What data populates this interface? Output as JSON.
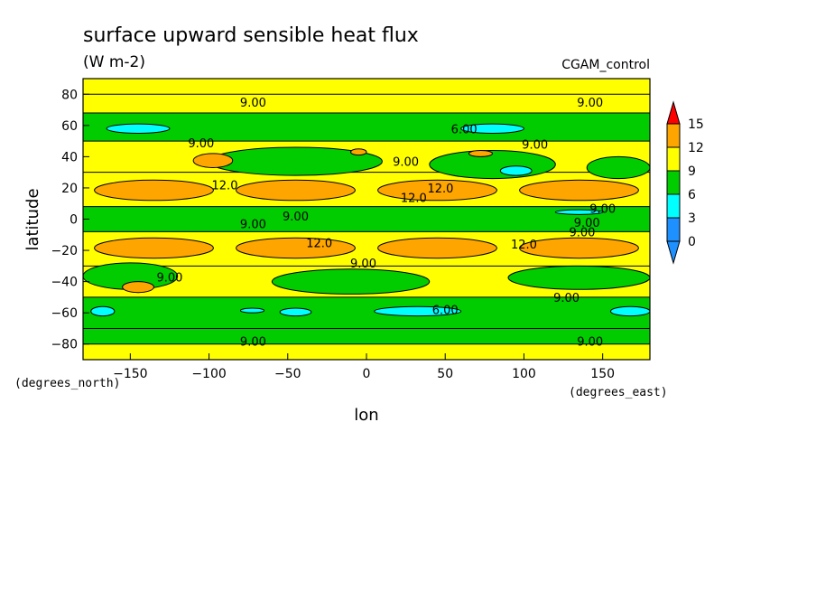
{
  "chart_data": {
    "type": "heatmap",
    "title": "surface upward sensible heat flux",
    "subtitle": "(W m-2)",
    "run_label": "CGAM_control",
    "xlabel": "lon",
    "ylabel": "latitude",
    "x_units": "(degrees_east)",
    "y_units": "(degrees_north)",
    "xlim": [
      -180,
      180
    ],
    "ylim": [
      -90,
      90
    ],
    "x_ticks": [
      -150,
      -100,
      -50,
      0,
      50,
      100,
      150
    ],
    "y_ticks": [
      -80,
      -60,
      -40,
      -20,
      0,
      20,
      40,
      60,
      80
    ],
    "colorbar": {
      "levels": [
        0,
        3,
        6,
        9,
        12,
        15
      ],
      "colors": [
        "#1e90ff",
        "#00ffff",
        "#00cc00",
        "#ffff00",
        "#ffa500"
      ],
      "under_color": "#1e90ff",
      "over_color": "#ff0000"
    },
    "bands": [
      {
        "lat": [
          80,
          90
        ],
        "level": 9
      },
      {
        "lat": [
          68,
          80
        ],
        "level": 9
      },
      {
        "lat": [
          50,
          68
        ],
        "level": 6
      },
      {
        "lat": [
          30,
          50
        ],
        "level": 9
      },
      {
        "lat": [
          8,
          30
        ],
        "level": 9
      },
      {
        "lat": [
          -8,
          8
        ],
        "level": 6
      },
      {
        "lat": [
          -30,
          -8
        ],
        "level": 9
      },
      {
        "lat": [
          -50,
          -30
        ],
        "level": 9
      },
      {
        "lat": [
          -70,
          -50
        ],
        "level": 6
      },
      {
        "lat": [
          -80,
          -70
        ],
        "level": 6
      },
      {
        "lat": [
          -90,
          -80
        ],
        "level": 9
      }
    ],
    "patches": [
      {
        "lon": [
          -180,
          180
        ],
        "lat": [
          12,
          25
        ],
        "level": 12,
        "shape": "wave"
      },
      {
        "lon": [
          -180,
          180
        ],
        "lat": [
          -25,
          -12
        ],
        "level": 12,
        "shape": "wave"
      },
      {
        "lon": [
          -100,
          10
        ],
        "lat": [
          28,
          46
        ],
        "level": 6
      },
      {
        "lon": [
          40,
          120
        ],
        "lat": [
          26,
          44
        ],
        "level": 6
      },
      {
        "lon": [
          140,
          180
        ],
        "lat": [
          26,
          40
        ],
        "level": 6
      },
      {
        "lon": [
          -180,
          -120
        ],
        "lat": [
          -45,
          -28
        ],
        "level": 6
      },
      {
        "lon": [
          -60,
          40
        ],
        "lat": [
          -48,
          -32
        ],
        "level": 6
      },
      {
        "lon": [
          90,
          180
        ],
        "lat": [
          -45,
          -30
        ],
        "level": 6
      },
      {
        "lon": [
          -165,
          -125
        ],
        "lat": [
          55,
          61
        ],
        "level": 3
      },
      {
        "lon": [
          60,
          100
        ],
        "lat": [
          55,
          61
        ],
        "level": 3
      },
      {
        "lon": [
          -175,
          -160
        ],
        "lat": [
          -62,
          -56
        ],
        "level": 3
      },
      {
        "lon": [
          -55,
          -35
        ],
        "lat": [
          -62,
          -57
        ],
        "level": 3
      },
      {
        "lon": [
          5,
          60
        ],
        "lat": [
          -62,
          -56
        ],
        "level": 3
      },
      {
        "lon": [
          155,
          180
        ],
        "lat": [
          -62,
          -56
        ],
        "level": 3
      },
      {
        "lon": [
          85,
          105
        ],
        "lat": [
          28,
          34
        ],
        "level": 3
      },
      {
        "lon": [
          -110,
          -85
        ],
        "lat": [
          33,
          42
        ],
        "level": 12
      },
      {
        "lon": [
          -10,
          0
        ],
        "lat": [
          41,
          45
        ],
        "level": 12
      },
      {
        "lon": [
          65,
          80
        ],
        "lat": [
          40,
          44
        ],
        "level": 12
      },
      {
        "lon": [
          -155,
          -135
        ],
        "lat": [
          -47,
          -40
        ],
        "level": 12
      },
      {
        "lon": [
          -80,
          -65
        ],
        "lat": [
          -60,
          -57
        ],
        "level": 3
      },
      {
        "lon": [
          120,
          150
        ],
        "lat": [
          3,
          6
        ],
        "level": 3
      }
    ],
    "contour_labels": [
      {
        "lon": -72,
        "lat": 75,
        "text": "9.00"
      },
      {
        "lon": 142,
        "lat": 75,
        "text": "9.00"
      },
      {
        "lon": 62,
        "lat": 58,
        "text": "6.00"
      },
      {
        "lon": -105,
        "lat": 49,
        "text": "9.00"
      },
      {
        "lon": 107,
        "lat": 48,
        "text": "9.00"
      },
      {
        "lon": 25,
        "lat": 37,
        "text": "9.00"
      },
      {
        "lon": -90,
        "lat": 22,
        "text": "12.0"
      },
      {
        "lon": 47,
        "lat": 20,
        "text": "12.0"
      },
      {
        "lon": 30,
        "lat": 14,
        "text": "12.0"
      },
      {
        "lon": 150,
        "lat": 7,
        "text": "9.00"
      },
      {
        "lon": -45,
        "lat": 2,
        "text": "9.00"
      },
      {
        "lon": -72,
        "lat": -3,
        "text": "9.00"
      },
      {
        "lon": 140,
        "lat": -2,
        "text": "9.00"
      },
      {
        "lon": 137,
        "lat": -8,
        "text": "9.00"
      },
      {
        "lon": -30,
        "lat": -15,
        "text": "12.0"
      },
      {
        "lon": 100,
        "lat": -16,
        "text": "12.0"
      },
      {
        "lon": -2,
        "lat": -28,
        "text": "9.00"
      },
      {
        "lon": -125,
        "lat": -37,
        "text": "9.00"
      },
      {
        "lon": 127,
        "lat": -50,
        "text": "9.00"
      },
      {
        "lon": 50,
        "lat": -58,
        "text": "6.00"
      },
      {
        "lon": -72,
        "lat": -78,
        "text": "9.00"
      },
      {
        "lon": 142,
        "lat": -78,
        "text": "9.00"
      }
    ]
  }
}
